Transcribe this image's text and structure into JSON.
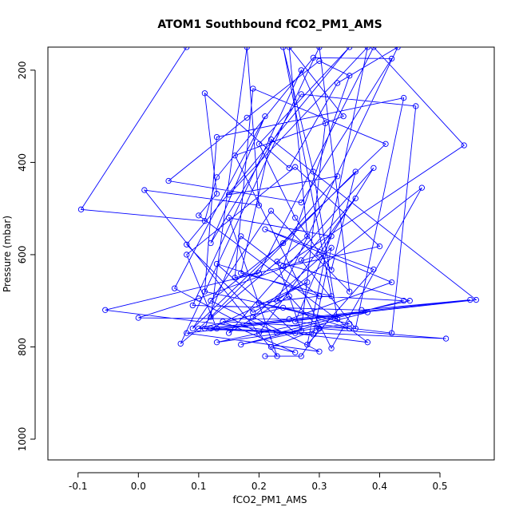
{
  "chart_data": {
    "type": "scatter",
    "title": "ATOM1 Southbound fCO2_PM1_AMS",
    "xlabel": "fCO2_PM1_AMS",
    "ylabel": "Pressure (mbar)",
    "xlim": [
      -0.15,
      0.59
    ],
    "ylim": [
      150,
      1045
    ],
    "y_reversed": true,
    "xticks": [
      -0.1,
      0.0,
      0.1,
      0.2,
      0.3,
      0.4,
      0.5
    ],
    "xtick_labels": [
      "-0.1",
      "0.0",
      "0.1",
      "0.2",
      "0.3",
      "0.4",
      "0.5"
    ],
    "yticks": [
      200,
      400,
      600,
      800,
      1000
    ],
    "ytick_labels": [
      "200",
      "400",
      "600",
      "800",
      "1000"
    ],
    "grid": false,
    "color": "#0000ff",
    "series": [
      {
        "connected": true,
        "points": [
          [
            0.08,
            150
          ],
          [
            -0.095,
            502
          ],
          [
            0.11,
            527
          ],
          [
            0.13,
            432
          ],
          [
            0.29,
            173
          ],
          [
            0.42,
            175
          ],
          [
            0.27,
            487
          ],
          [
            0.05,
            440
          ],
          [
            0.18,
            303
          ],
          [
            0.3,
            180
          ],
          [
            0.35,
            212
          ],
          [
            0.24,
            625
          ],
          [
            0.54,
            363
          ],
          [
            0.39,
            150
          ],
          [
            0.2,
            640
          ],
          [
            -0.055,
            720
          ],
          [
            0.38,
            790
          ],
          [
            0.1,
            515
          ],
          [
            0.13,
            468
          ],
          [
            0.11,
            250
          ],
          [
            0.25,
            412
          ],
          [
            0.33,
            228
          ],
          [
            0.43,
            150
          ],
          [
            0.23,
            700
          ],
          [
            0.47,
            455
          ],
          [
            0.32,
            803
          ],
          [
            0.16,
            385
          ],
          [
            0.34,
            300
          ],
          [
            0.25,
            150
          ],
          [
            0.28,
            560
          ],
          [
            0.07,
            793
          ],
          [
            0.3,
            150
          ],
          [
            0.35,
            680
          ],
          [
            0.22,
            505
          ],
          [
            0.09,
            760
          ],
          [
            0.41,
            360
          ],
          [
            0.19,
            240
          ],
          [
            0.16,
            650
          ],
          [
            0.4,
            582
          ],
          [
            0.26,
            410
          ],
          [
            0.08,
            600
          ],
          [
            0.13,
            760
          ],
          [
            0.56,
            698
          ],
          [
            0.22,
            350
          ],
          [
            0.17,
            640
          ],
          [
            0.32,
            690
          ],
          [
            0.24,
            150
          ],
          [
            0.29,
            420
          ],
          [
            0.33,
            740
          ],
          [
            0.11,
            680
          ],
          [
            0.13,
            345
          ],
          [
            0.44,
            260
          ],
          [
            0.36,
            760
          ],
          [
            0.27,
            612
          ],
          [
            0.36,
            478
          ],
          [
            0.2,
            770
          ],
          [
            0.06,
            673
          ],
          [
            0.21,
            300
          ],
          [
            0.12,
            575
          ],
          [
            0.27,
            252
          ],
          [
            0.46,
            278
          ],
          [
            0.42,
            770
          ],
          [
            0.26,
            745
          ],
          [
            0.32,
            560
          ],
          [
            0.15,
            520
          ],
          [
            0.23,
            820
          ],
          [
            0.01,
            460
          ],
          [
            0.2,
            493
          ],
          [
            0.18,
            150
          ],
          [
            0.12,
            735
          ],
          [
            0.36,
            420
          ],
          [
            0.32,
            633
          ],
          [
            0.26,
            520
          ],
          [
            0.2,
            360
          ],
          [
            0.35,
            150
          ],
          [
            0.08,
            578
          ],
          [
            0.19,
            725
          ],
          [
            0.28,
            660
          ],
          [
            0.12,
            760
          ],
          [
            0.51,
            782
          ],
          [
            0.3,
            760
          ],
          [
            0.25,
            690
          ],
          [
            0.15,
            770
          ],
          [
            0.39,
            412
          ],
          [
            0.3,
            600
          ],
          [
            0.1,
            695
          ],
          [
            0.0,
            737
          ],
          [
            0.25,
            740
          ],
          [
            0.42,
            660
          ],
          [
            0.21,
            545
          ],
          [
            0.39,
            632
          ],
          [
            0.28,
            795
          ],
          [
            0.38,
            150
          ],
          [
            0.15,
            470
          ],
          [
            0.33,
            430
          ],
          [
            0.24,
            575
          ],
          [
            0.12,
            700
          ],
          [
            0.23,
            770
          ],
          [
            0.44,
            700
          ],
          [
            0.3,
            690
          ],
          [
            0.17,
            560
          ],
          [
            0.11,
            760
          ],
          [
            0.55,
            698
          ],
          [
            0.37,
            720
          ],
          [
            0.09,
            710
          ],
          [
            0.27,
            200
          ],
          [
            0.31,
            315
          ],
          [
            0.27,
            765
          ],
          [
            0.23,
            615
          ],
          [
            0.45,
            700
          ],
          [
            0.13,
            790
          ],
          [
            0.35,
            750
          ],
          [
            0.2,
            705
          ],
          [
            0.3,
            690
          ],
          [
            0.13,
            620
          ],
          [
            0.26,
            770
          ],
          [
            0.17,
            795
          ],
          [
            0.38,
            725
          ],
          [
            0.08,
            770
          ],
          [
            0.3,
            810
          ],
          [
            0.19,
            735
          ],
          [
            0.32,
            585
          ],
          [
            0.29,
            773
          ],
          [
            0.1,
            760
          ],
          [
            0.24,
            715
          ],
          [
            0.35,
            760
          ],
          [
            0.14,
            745
          ],
          [
            0.26,
            812
          ],
          [
            0.22,
            800
          ],
          [
            0.3,
            760
          ],
          [
            0.27,
            820
          ],
          [
            0.21,
            820
          ]
        ]
      }
    ]
  }
}
